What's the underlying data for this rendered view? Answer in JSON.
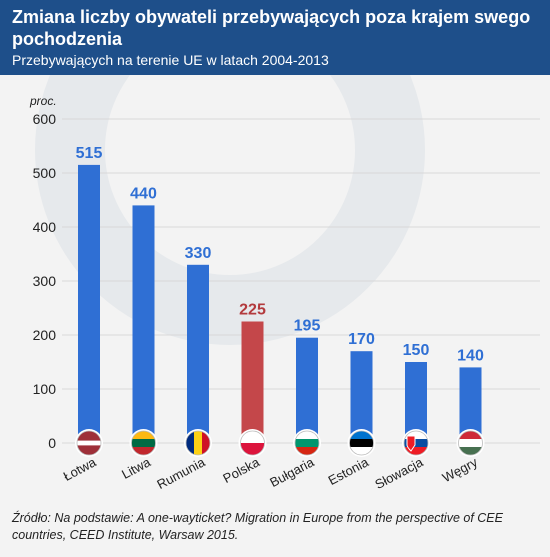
{
  "header": {
    "title": "Zmiana liczby obywateli przebywających poza krajem swego pochodzenia",
    "subtitle": "Przebywających na terenie UE w latach 2004-2013"
  },
  "source": "Źródło: Na podstawie: A one-wayticket? Migration in Europe from the perspective of CEE countries, CEED Institute, Warsaw 2015.",
  "colors": {
    "header_bg": "#1e4f8a",
    "bar_default": "#2f6fd4",
    "bar_highlight": "#c4474a",
    "label_default": "#2f6fd4",
    "label_highlight": "#b33a3d"
  },
  "chart_data": {
    "type": "bar",
    "title": "Zmiana liczby obywateli przebywających poza krajem swego pochodzenia",
    "subtitle": "Przebywających na terenie UE w latach 2004-2013",
    "ylabel": "proc.",
    "xlabel": "",
    "ylim": [
      0,
      600
    ],
    "yticks": [
      0,
      100,
      200,
      300,
      400,
      500,
      600
    ],
    "grid": true,
    "categories": [
      "Łotwa",
      "Litwa",
      "Rumunia",
      "Polska",
      "Bułgaria",
      "Estonia",
      "Słowacja",
      "Węgry"
    ],
    "values": [
      515,
      440,
      330,
      225,
      195,
      170,
      150,
      140
    ],
    "highlight": "Polska",
    "flags": [
      "latvia-flag-icon",
      "lithuania-flag-icon",
      "romania-flag-icon",
      "poland-flag-icon",
      "bulgaria-flag-icon",
      "estonia-flag-icon",
      "slovakia-flag-icon",
      "hungary-flag-icon"
    ]
  }
}
